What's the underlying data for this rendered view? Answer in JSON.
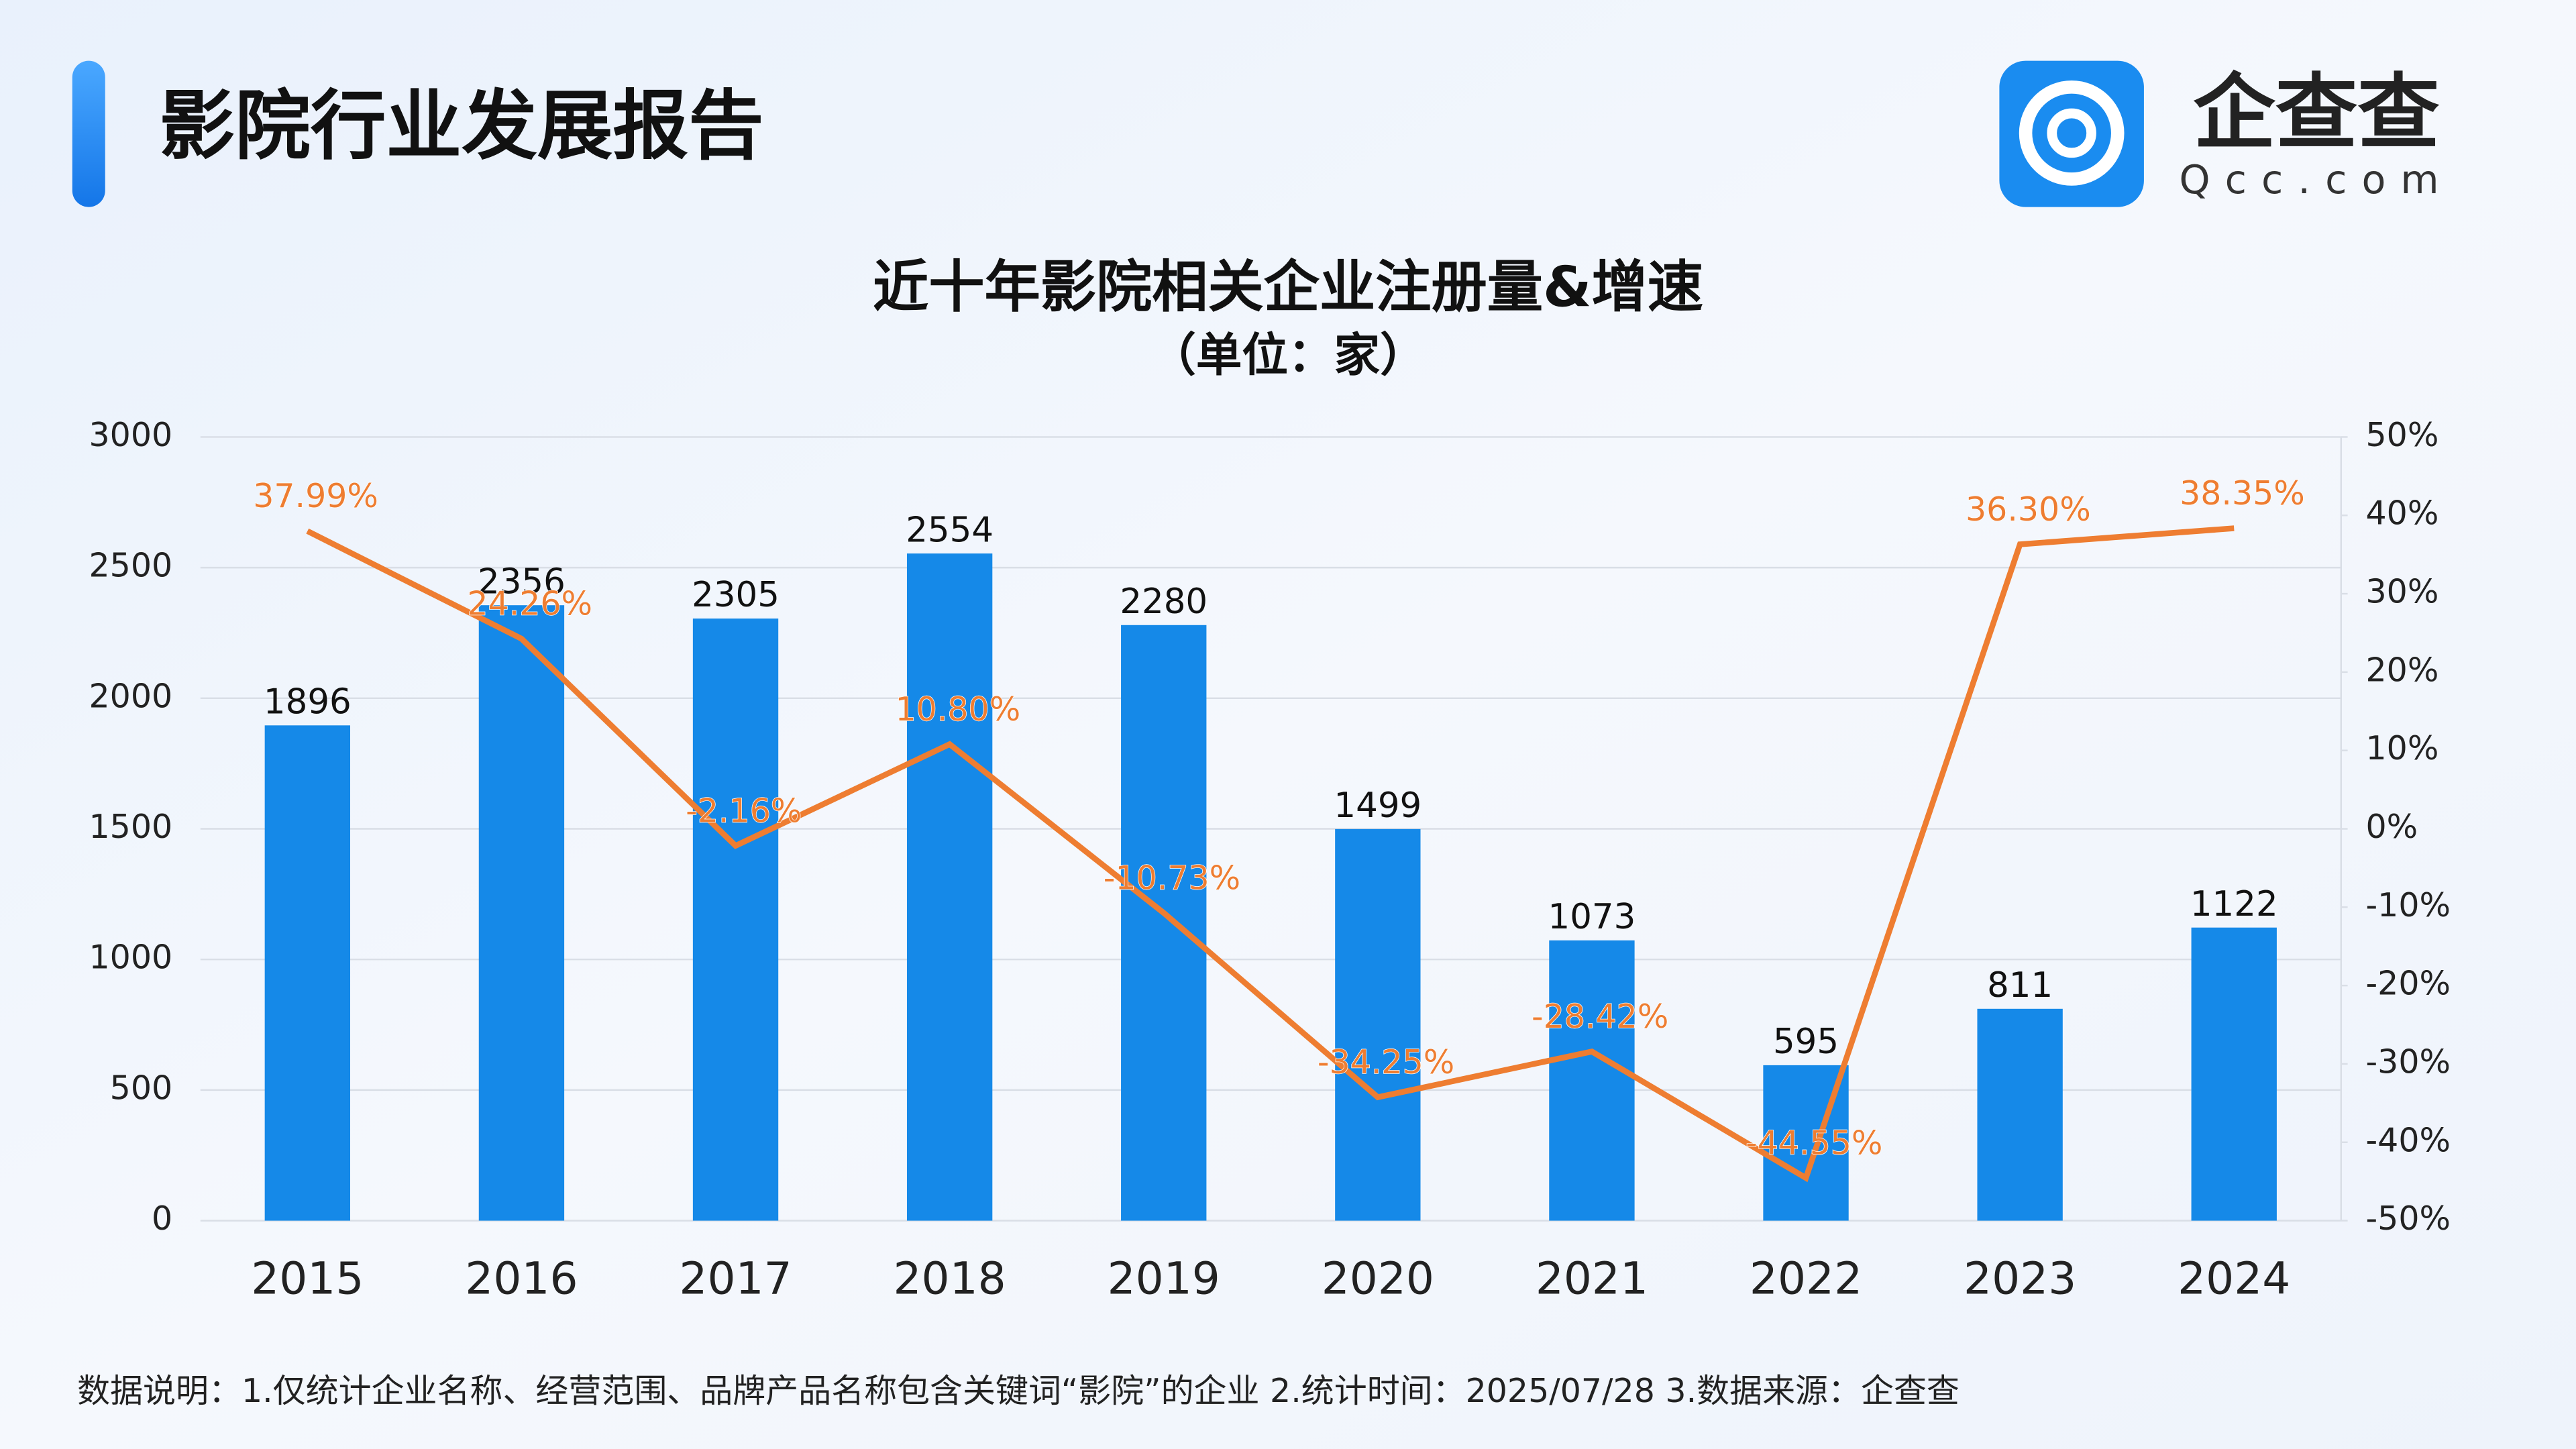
{
  "header": {
    "title": "影院行业发展报告",
    "logo_name": "企查查",
    "logo_url": "Qcc.com"
  },
  "chart_data": {
    "type": "bar+line",
    "title": "近十年影院相关企业注册量&增速",
    "subtitle": "（单位：家）",
    "categories": [
      "2015",
      "2016",
      "2017",
      "2018",
      "2019",
      "2020",
      "2021",
      "2022",
      "2023",
      "2024"
    ],
    "series": [
      {
        "type": "bar",
        "color": "#1589e8",
        "values": [
          1896,
          2356,
          2305,
          2554,
          2280,
          1499,
          1073,
          595,
          811,
          1122
        ]
      },
      {
        "type": "line",
        "axis": "y2",
        "color": "#ee7d31",
        "values": [
          37.99,
          24.26,
          -2.16,
          10.8,
          -10.73,
          -34.25,
          -28.42,
          -44.55,
          36.3,
          38.35
        ],
        "value_labels": [
          "37.99%",
          "24.26%",
          "-2.16%",
          "10.80%",
          "-10.73%",
          "-34.25%",
          "-28.42%",
          "-44.55%",
          "36.30%",
          "38.35%"
        ]
      }
    ],
    "ylim": [
      0,
      3000
    ],
    "yticks": [
      0,
      500,
      1000,
      1500,
      2000,
      2500,
      3000
    ],
    "y2lim": [
      -50,
      50
    ],
    "y2ticks": [
      {
        "value": -50,
        "label": "-50%"
      },
      {
        "value": -40,
        "label": "-40%"
      },
      {
        "value": -30,
        "label": "-30%"
      },
      {
        "value": -20,
        "label": "-20%"
      },
      {
        "value": -10,
        "label": "-10%"
      },
      {
        "value": 0,
        "label": "0%"
      },
      {
        "value": 10,
        "label": "10%"
      },
      {
        "value": 20,
        "label": "20%"
      },
      {
        "value": 30,
        "label": "30%"
      },
      {
        "value": 40,
        "label": "40%"
      },
      {
        "value": 50,
        "label": "50%"
      }
    ],
    "grid": true
  },
  "footnote": "数据说明：1.仅统计企业名称、经营范围、品牌产品名称包含关键词“影院”的企业   2.统计时间：2025/07/28    3.数据来源：企查查"
}
